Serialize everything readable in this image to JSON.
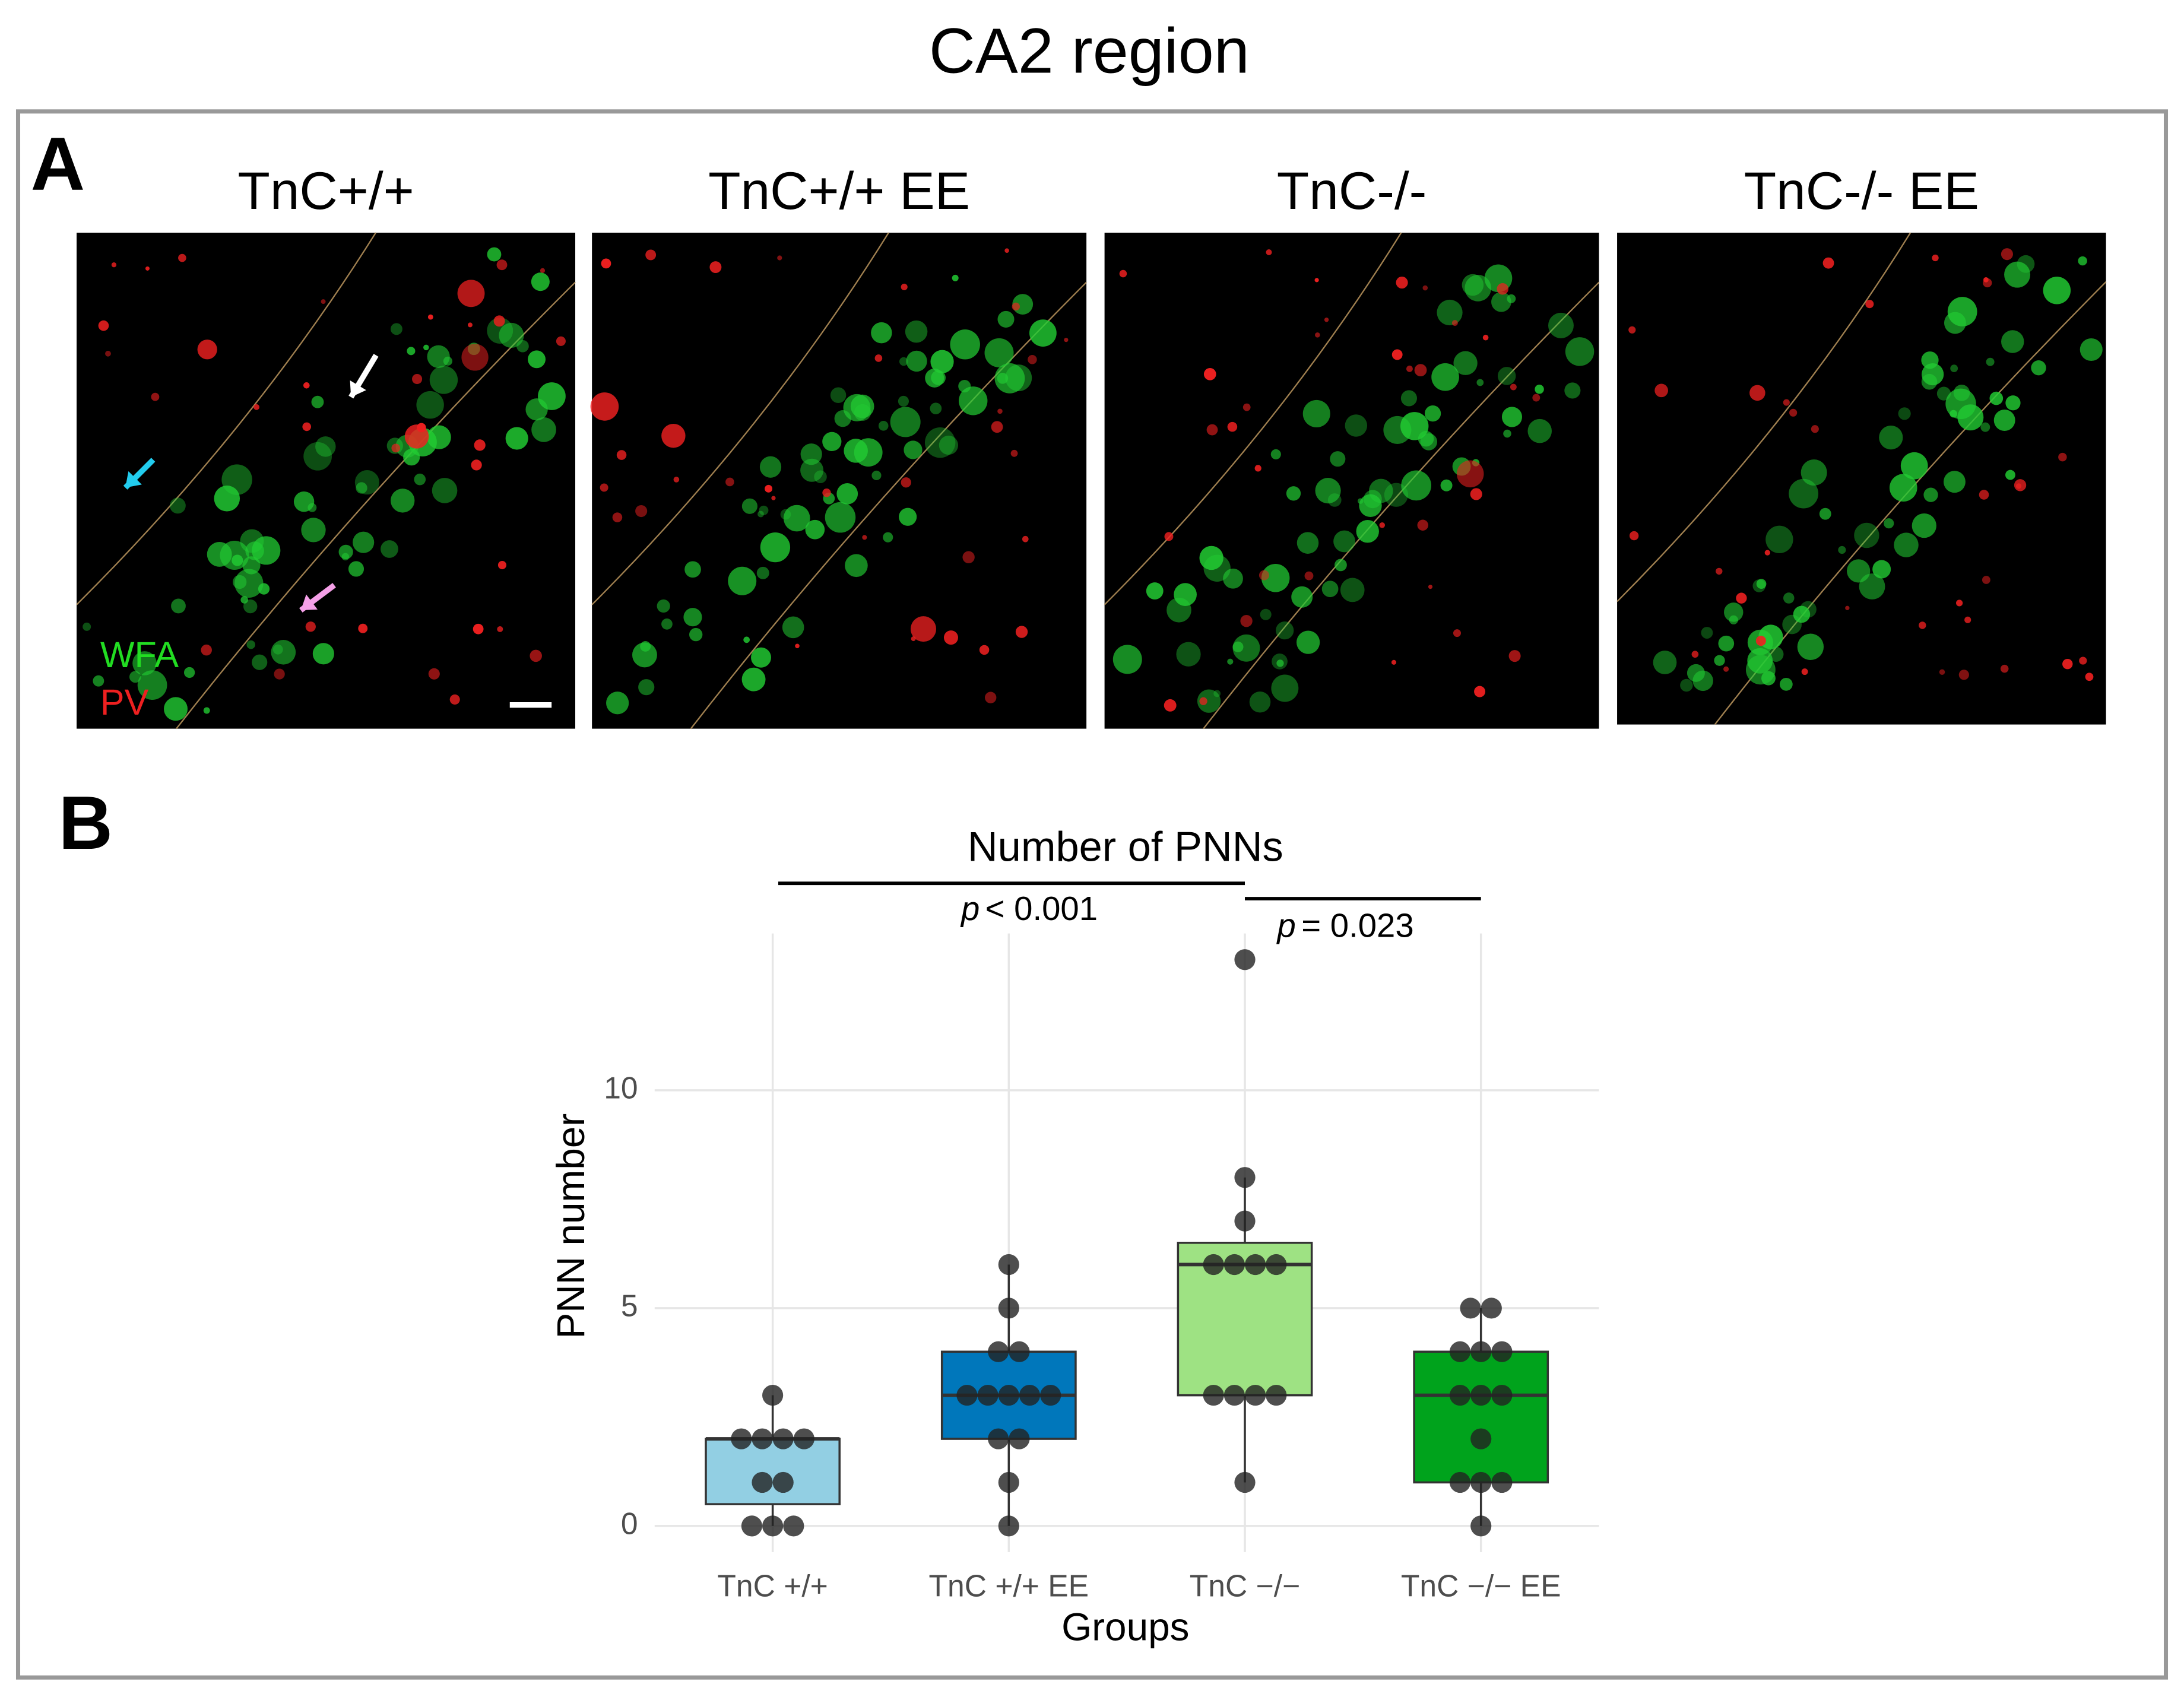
{
  "title": "CA2 region",
  "panel_a": {
    "label": "A",
    "images": [
      {
        "title": "TnC+/+"
      },
      {
        "title": "TnC+/+ EE"
      },
      {
        "title": "TnC-/-"
      },
      {
        "title": "TnC-/- EE"
      }
    ],
    "channel_labels": [
      "WFA",
      "PV"
    ]
  },
  "panel_b": {
    "label": "B"
  },
  "chart_data": {
    "type": "box",
    "title": "Number of PNNs",
    "x_label": "Groups",
    "y_label": "PNN number",
    "categories": [
      "TnC +/+",
      "TnC +/+ EE",
      "TnC −/−",
      "TnC −/− EE"
    ],
    "boxes": [
      {
        "color": "#92cfe3",
        "whisker_low": 0,
        "q1": 0.5,
        "median": 2,
        "q3": 2,
        "whisker_high": 3
      },
      {
        "color": "#0077bb",
        "whisker_low": 0,
        "q1": 2,
        "median": 3,
        "q3": 4,
        "whisker_high": 6
      },
      {
        "color": "#9ee283",
        "whisker_low": 1,
        "q1": 3,
        "median": 6,
        "q3": 6.5,
        "whisker_high": 8
      },
      {
        "color": "#00a31c",
        "whisker_low": 0,
        "q1": 1,
        "median": 3,
        "q3": 4,
        "whisker_high": 5
      }
    ],
    "points": [
      [
        0,
        0,
        0,
        1,
        1,
        2,
        2,
        2,
        2,
        3
      ],
      [
        0,
        1,
        2,
        2,
        3,
        3,
        3,
        3,
        3,
        4,
        4,
        5,
        6
      ],
      [
        1,
        3,
        3,
        3,
        3,
        6,
        6,
        6,
        6,
        7,
        8,
        13
      ],
      [
        0,
        1,
        1,
        1,
        2,
        3,
        3,
        3,
        4,
        4,
        4,
        5,
        5
      ]
    ],
    "ylim": [
      -0.6,
      13.6
    ],
    "yticks": [
      0,
      5,
      10
    ],
    "grid": true,
    "annotations": [
      {
        "p": "p",
        "text": "< 0.001"
      },
      {
        "p": "p",
        "text": "= 0.023"
      }
    ]
  }
}
